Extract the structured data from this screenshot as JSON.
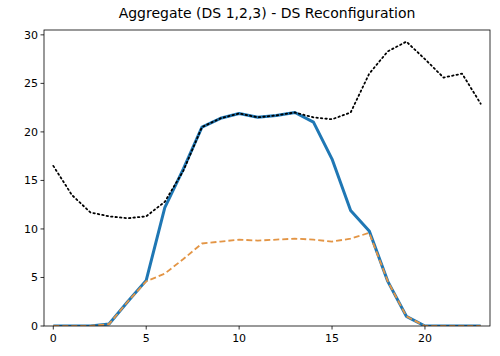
{
  "chart_data": {
    "type": "line",
    "title": "Aggregate (DS 1,2,3) - DS Reconfiguration",
    "x": [
      0,
      1,
      2,
      3,
      4,
      5,
      6,
      7,
      8,
      9,
      10,
      11,
      12,
      13,
      14,
      15,
      16,
      17,
      18,
      19,
      20,
      21,
      22,
      23
    ],
    "series": [
      {
        "color": "#1f77b4",
        "line_style": "solid",
        "values": [
          0,
          0,
          0,
          0.2,
          2.5,
          4.7,
          12.2,
          16.2,
          20.5,
          21.4,
          21.9,
          21.5,
          21.7,
          22.0,
          21.0,
          17.2,
          11.9,
          9.8,
          4.6,
          1.0,
          0,
          0,
          0,
          0
        ]
      },
      {
        "color": "#e39545",
        "line_style": "dashed",
        "values": [
          0,
          0,
          0,
          0.2,
          2.5,
          4.6,
          5.4,
          6.9,
          8.5,
          8.7,
          8.9,
          8.8,
          8.9,
          9.0,
          8.9,
          8.7,
          9.0,
          9.6,
          4.6,
          1.0,
          0,
          0,
          0,
          0
        ]
      },
      {
        "color": "#000000",
        "line_style": "dotted",
        "values": [
          16.5,
          13.5,
          11.7,
          11.3,
          11.1,
          11.3,
          12.8,
          16.0,
          20.5,
          21.4,
          21.9,
          21.5,
          21.7,
          22.0,
          21.5,
          21.3,
          22.0,
          26.0,
          28.3,
          29.3,
          27.5,
          25.6,
          26.0,
          22.9
        ]
      }
    ],
    "xlim": [
      -0.5,
      23.5
    ],
    "ylim": [
      0,
      30.5
    ],
    "xticks": [
      0,
      5,
      10,
      15,
      20
    ],
    "yticks": [
      0,
      5,
      10,
      15,
      20,
      25,
      30
    ],
    "grid": false
  }
}
